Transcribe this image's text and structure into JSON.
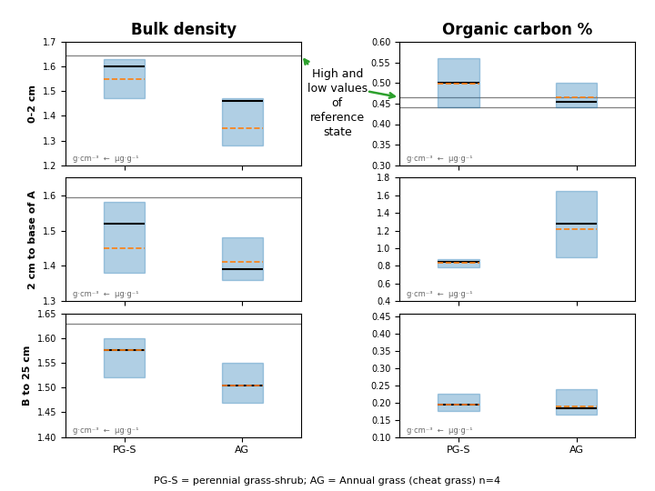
{
  "chart_data": [
    {
      "type": "box",
      "title": "Bulk density",
      "ylabel": "0-2 cm",
      "categories": [
        "PG-S",
        "AG"
      ],
      "tick_labels": "y",
      "low": [
        1.47,
        1.28
      ],
      "high": [
        1.63,
        1.47
      ],
      "median": [
        1.6,
        1.46
      ],
      "mean": [
        1.55,
        1.35
      ],
      "ylim": [
        1.2,
        1.7
      ],
      "yticks": [
        1.2,
        1.3,
        1.4,
        1.5,
        1.6,
        1.7
      ],
      "ref_lines": [
        1.645
      ],
      "annotations": [
        "g·cm⁻³  ←  μg·g⁻¹"
      ]
    },
    {
      "type": "box",
      "title": "Organic carbon %",
      "categories": [
        "PG-S",
        "AG"
      ],
      "tick_labels": "y",
      "low": [
        0.44,
        0.44
      ],
      "high": [
        0.56,
        0.5
      ],
      "median": [
        0.5,
        0.455
      ],
      "mean": [
        0.498,
        0.465
      ],
      "ylim": [
        0.3,
        0.6
      ],
      "yticks": [
        {
          "value": 0.3,
          "label": "0.30"
        },
        {
          "value": 0.35,
          "label": "0.35"
        },
        {
          "value": 0.4,
          "label": "0.40"
        },
        {
          "value": 0.45,
          "label": "0.45"
        },
        {
          "value": 0.5,
          "label": "0.50"
        },
        {
          "value": 0.55,
          "label": "0.55"
        },
        {
          "value": 0.6,
          "label": "0.60"
        }
      ],
      "ref_lines": [
        0.465,
        0.44
      ],
      "annotations": [
        "g·cm⁻³  ←  μg·g⁻¹"
      ]
    },
    {
      "type": "box",
      "ylabel": "2 cm to base of A",
      "categories": [
        "PG-S",
        "AG"
      ],
      "tick_labels": "y",
      "low": [
        1.38,
        1.36
      ],
      "high": [
        1.58,
        1.48
      ],
      "median": [
        1.52,
        1.39
      ],
      "mean": [
        1.45,
        1.41
      ],
      "ylim": [
        1.3,
        1.65
      ],
      "yticks": [
        1.3,
        1.4,
        1.5,
        1.6
      ],
      "ref_lines": [
        1.595
      ],
      "annotations": [
        "g·cm⁻³  ←  μg·g⁻¹"
      ]
    },
    {
      "type": "box",
      "categories": [
        "PG-S",
        "AG"
      ],
      "tick_labels": "y",
      "low": [
        0.78,
        0.9
      ],
      "high": [
        0.88,
        1.65
      ],
      "median": [
        0.84,
        1.28
      ],
      "mean": [
        0.83,
        1.22
      ],
      "ylim": [
        0.4,
        1.8
      ],
      "yticks": [
        0.4,
        0.6,
        0.8,
        {
          "value": 1.0,
          "label": "1.0"
        },
        1.2,
        1.4,
        1.6,
        1.8
      ],
      "annotations": [
        "g·cm⁻³  ←  μg·g⁻¹"
      ]
    },
    {
      "type": "box",
      "ylabel": "B to 25 cm",
      "categories": [
        "PG-S",
        "AG"
      ],
      "low": [
        1.52,
        1.47
      ],
      "high": [
        1.6,
        1.55
      ],
      "median": [
        1.575,
        1.505
      ],
      "mean": [
        1.575,
        1.505
      ],
      "ylim": [
        1.4,
        1.65
      ],
      "yticks": [
        {
          "value": 1.4,
          "label": "1.40"
        },
        {
          "value": 1.45,
          "label": "1.45"
        },
        {
          "value": 1.5,
          "label": "1.50"
        },
        {
          "value": 1.55,
          "label": "1.55"
        },
        {
          "value": 1.6,
          "label": "1.60"
        },
        {
          "value": 1.65,
          "label": "1.65"
        }
      ],
      "ref_lines": [
        1.63
      ],
      "annotations": [
        "g·cm⁻³  ←  μg·g⁻¹"
      ]
    },
    {
      "type": "box",
      "categories": [
        "PG-S",
        "AG"
      ],
      "low": [
        0.175,
        0.165
      ],
      "high": [
        0.225,
        0.24
      ],
      "median": [
        0.195,
        0.185
      ],
      "mean": [
        0.195,
        0.19
      ],
      "ylim": [
        0.1,
        0.46
      ],
      "yticks": [
        {
          "value": 0.1,
          "label": "0.10"
        },
        {
          "value": 0.15,
          "label": "0.15"
        },
        {
          "value": 0.2,
          "label": "0.20"
        },
        {
          "value": 0.25,
          "label": "0.25"
        },
        {
          "value": 0.3,
          "label": "0.30"
        },
        {
          "value": 0.35,
          "label": "0.35"
        },
        {
          "value": 0.4,
          "label": "0.40"
        },
        {
          "value": 0.45,
          "label": "0.45"
        }
      ],
      "annotations": [
        "g·cm⁻³  ←  μg·g⁻¹"
      ]
    }
  ],
  "caption": "PG-S = perennial grass-shrub; AG = Annual grass (cheat grass) n=4",
  "annotation": "High and\nlow values\nof\nreference\nstate"
}
